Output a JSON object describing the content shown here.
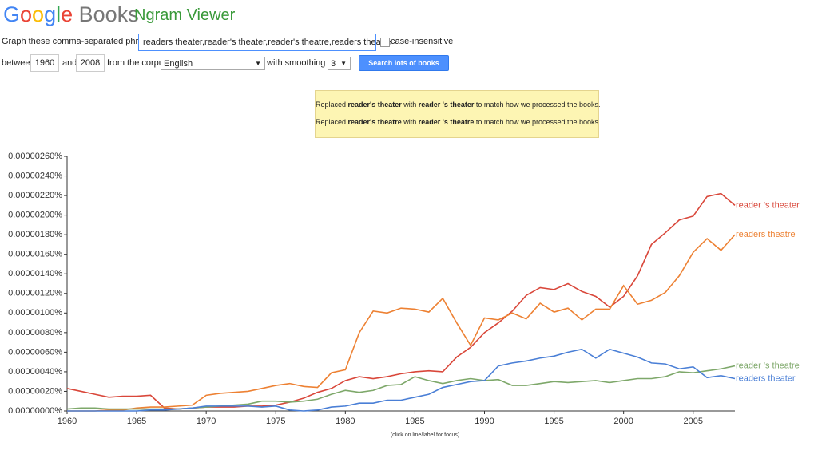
{
  "header": {
    "logo_google": "Google",
    "logo_books": "Books",
    "product": "Ngram Viewer"
  },
  "form": {
    "phrases_label": "Graph these comma-separated phrases:",
    "phrases_value": "readers theater,reader's theater,reader's theatre,readers theatre",
    "case_label": "case-insensitive",
    "between_label": "between",
    "start_year": "1960",
    "and_label": "and",
    "end_year": "2008",
    "corpus_label": "from the corpus",
    "corpus_value": "English",
    "smoothing_label": "with smoothing of",
    "smoothing_value": "3",
    "button": "Search lots of books"
  },
  "notice": {
    "lines": [
      [
        "Replaced ",
        "reader's theater",
        " with ",
        "reader 's theater",
        " to match how we processed the books."
      ],
      [
        "Replaced ",
        "reader's theatre",
        " with ",
        "reader 's theatre",
        " to match how we processed the books."
      ]
    ]
  },
  "chart_data": {
    "type": "line",
    "note": "(click on line/label for focus)",
    "x": [
      1960,
      1961,
      1962,
      1963,
      1964,
      1965,
      1966,
      1967,
      1968,
      1969,
      1970,
      1971,
      1972,
      1973,
      1974,
      1975,
      1976,
      1977,
      1978,
      1979,
      1980,
      1981,
      1982,
      1983,
      1984,
      1985,
      1986,
      1987,
      1988,
      1989,
      1990,
      1991,
      1992,
      1993,
      1994,
      1995,
      1996,
      1997,
      1998,
      1999,
      2000,
      2001,
      2002,
      2003,
      2004,
      2005,
      2006,
      2007,
      2008
    ],
    "xlim": [
      1960,
      2008
    ],
    "xticks": [
      1960,
      1965,
      1970,
      1975,
      1980,
      1985,
      1990,
      1995,
      2000,
      2005
    ],
    "ylim": [
      0,
      2.6e-06
    ],
    "yticks": [
      {
        "value": 0,
        "label": "0.00000000%"
      },
      {
        "value": 2e-07,
        "label": "0.00000020%"
      },
      {
        "value": 4e-07,
        "label": "0.00000040%"
      },
      {
        "value": 6e-07,
        "label": "0.00000060%"
      },
      {
        "value": 8e-07,
        "label": "0.00000080%"
      },
      {
        "value": 1e-06,
        "label": "0.00000100%"
      },
      {
        "value": 1.2e-06,
        "label": "0.00000120%"
      },
      {
        "value": 1.4e-06,
        "label": "0.00000140%"
      },
      {
        "value": 1.6e-06,
        "label": "0.00000160%"
      },
      {
        "value": 1.8e-06,
        "label": "0.00000180%"
      },
      {
        "value": 2e-06,
        "label": "0.00000200%"
      },
      {
        "value": 2.2e-06,
        "label": "0.00000220%"
      },
      {
        "value": 2.4e-06,
        "label": "0.00000240%"
      },
      {
        "value": 2.6e-06,
        "label": "0.00000260%"
      }
    ],
    "grid": false,
    "series": [
      {
        "name": "reader 's theater",
        "color": "#d9473a",
        "values": [
          2.3e-07,
          2e-07,
          1.7e-07,
          1.4e-07,
          1.5e-07,
          1.5e-07,
          1.6e-07,
          3e-08,
          2e-08,
          3e-08,
          4e-08,
          4e-08,
          4e-08,
          5e-08,
          5e-08,
          6e-08,
          9e-08,
          1.3e-07,
          1.9e-07,
          2.3e-07,
          3.1e-07,
          3.5e-07,
          3.3e-07,
          3.5e-07,
          3.8e-07,
          4e-07,
          4.1e-07,
          4e-07,
          5.5e-07,
          6.5e-07,
          8e-07,
          9e-07,
          1.02e-06,
          1.18e-06,
          1.26e-06,
          1.24e-06,
          1.3e-06,
          1.22e-06,
          1.17e-06,
          1.06e-06,
          1.17e-06,
          1.38e-06,
          1.7e-06,
          1.82e-06,
          1.95e-06,
          1.99e-06,
          2.19e-06,
          2.22e-06,
          2.1e-06
        ]
      },
      {
        "name": "readers theatre",
        "color": "#ed8133",
        "values": [
          0,
          0,
          0,
          1e-08,
          1e-08,
          3e-08,
          4e-08,
          4e-08,
          5e-08,
          6e-08,
          1.6e-07,
          1.8e-07,
          1.9e-07,
          2e-07,
          2.3e-07,
          2.6e-07,
          2.8e-07,
          2.5e-07,
          2.4e-07,
          3.9e-07,
          4.2e-07,
          8e-07,
          1.02e-06,
          1e-06,
          1.05e-06,
          1.04e-06,
          1.01e-06,
          1.15e-06,
          9e-07,
          6.7e-07,
          9.5e-07,
          9.3e-07,
          1e-06,
          9.4e-07,
          1.1e-06,
          1.01e-06,
          1.05e-06,
          9.3e-07,
          1.04e-06,
          1.04e-06,
          1.28e-06,
          1.09e-06,
          1.13e-06,
          1.21e-06,
          1.38e-06,
          1.62e-06,
          1.76e-06,
          1.64e-06,
          1.8e-06
        ]
      },
      {
        "name": "reader 's theatre",
        "color": "#7ea86a",
        "values": [
          2e-08,
          3e-08,
          3e-08,
          2e-08,
          2e-08,
          2e-08,
          2e-08,
          2e-08,
          2e-08,
          3e-08,
          4e-08,
          5e-08,
          6e-08,
          7e-08,
          1e-07,
          1e-07,
          9e-08,
          1e-07,
          1.2e-07,
          1.7e-07,
          2.1e-07,
          1.9e-07,
          2.1e-07,
          2.6e-07,
          2.7e-07,
          3.5e-07,
          3.1e-07,
          2.8e-07,
          3.1e-07,
          3.3e-07,
          3.1e-07,
          3.2e-07,
          2.6e-07,
          2.6e-07,
          2.8e-07,
          3e-07,
          2.9e-07,
          3e-07,
          3.1e-07,
          2.9e-07,
          3.1e-07,
          3.3e-07,
          3.3e-07,
          3.5e-07,
          4e-07,
          3.9e-07,
          4.1e-07,
          4.3e-07,
          4.6e-07
        ]
      },
      {
        "name": "readers theater",
        "color": "#4a7fd6",
        "values": [
          0,
          0,
          0,
          0,
          0,
          0,
          1e-08,
          1e-08,
          2e-08,
          3e-08,
          5e-08,
          5e-08,
          5e-08,
          5e-08,
          4e-08,
          5e-08,
          1e-08,
          0,
          1e-08,
          4e-08,
          5e-08,
          8e-08,
          8e-08,
          1.1e-07,
          1.1e-07,
          1.4e-07,
          1.7e-07,
          2.4e-07,
          2.7e-07,
          3e-07,
          3.1e-07,
          4.6e-07,
          4.9e-07,
          5.1e-07,
          5.4e-07,
          5.6e-07,
          6e-07,
          6.3e-07,
          5.4e-07,
          6.3e-07,
          5.9e-07,
          5.5e-07,
          4.9e-07,
          4.8e-07,
          4.3e-07,
          4.5e-07,
          3.4e-07,
          3.6e-07,
          3.3e-07
        ]
      }
    ]
  }
}
